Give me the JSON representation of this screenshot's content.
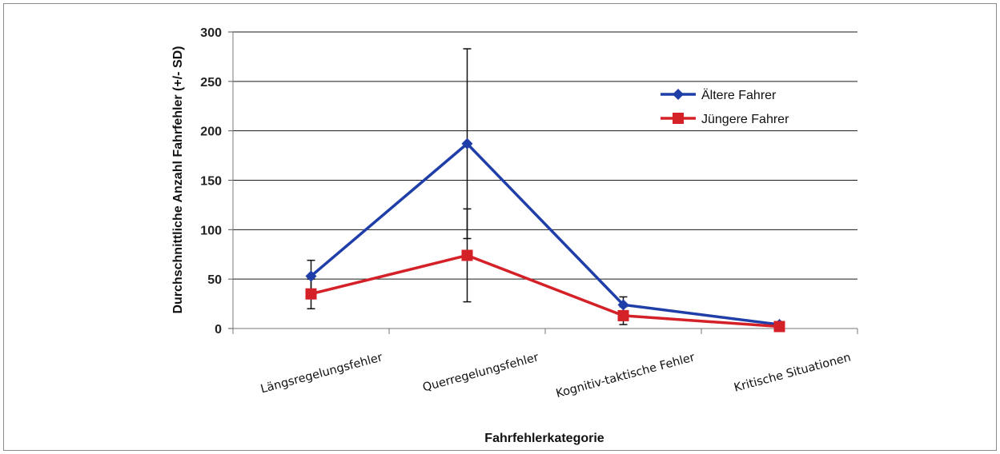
{
  "chart_data": {
    "type": "line",
    "title": "",
    "xlabel": "Fahrfehlerkategorie",
    "ylabel": "Durchschnittliche Anzahl Fahrfehler (+/- SD)",
    "categories": [
      "Längsregelungsfehler",
      "Querregelungsfehler",
      "Kognitiv-taktische  Fehler",
      "Kritische Situationen"
    ],
    "ylim": [
      0,
      300
    ],
    "yticks": [
      0,
      50,
      100,
      150,
      200,
      250,
      300
    ],
    "grid": true,
    "legend_position": "top-right",
    "series": [
      {
        "name": "Ältere Fahrer",
        "color": "#1f3ea8",
        "marker": "diamond",
        "values": [
          53,
          187,
          24,
          4
        ],
        "sd": [
          16,
          96,
          8,
          1
        ]
      },
      {
        "name": "Jüngere Fahrer",
        "color": "#d42027",
        "marker": "square",
        "values": [
          35,
          74,
          13,
          2
        ],
        "sd": [
          15,
          47,
          9,
          1
        ]
      }
    ]
  }
}
